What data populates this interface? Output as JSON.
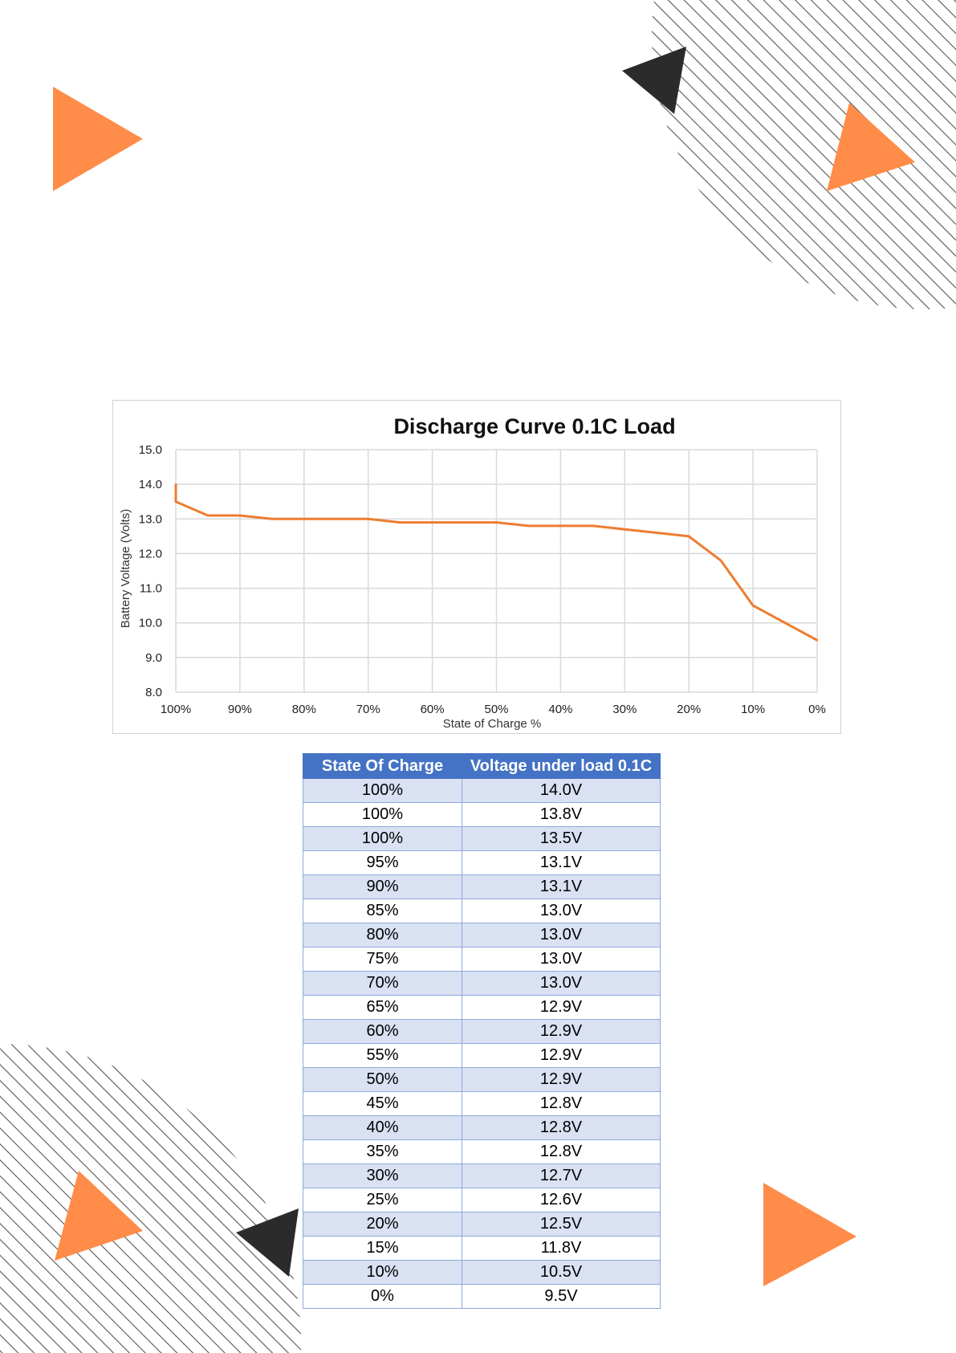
{
  "chart_data": {
    "type": "line",
    "title": "Discharge Curve 0.1C Load",
    "xlabel": "State of Charge %",
    "ylabel": "Battery Voltage (Volts)",
    "x_reversed": true,
    "xlim": [
      100,
      0
    ],
    "ylim": [
      8.0,
      15.0
    ],
    "x_ticks": [
      "100%",
      "90%",
      "80%",
      "70%",
      "60%",
      "50%",
      "40%",
      "30%",
      "20%",
      "10%",
      "0%"
    ],
    "y_ticks": [
      "8.0",
      "9.0",
      "10.0",
      "11.0",
      "12.0",
      "13.0",
      "14.0",
      "15.0"
    ],
    "grid": true,
    "series": [
      {
        "color": "#ed7d31",
        "x": [
          100,
          100,
          100,
          95,
          90,
          85,
          80,
          75,
          70,
          65,
          60,
          55,
          50,
          45,
          40,
          35,
          30,
          25,
          20,
          15,
          10,
          0
        ],
        "y": [
          14.0,
          13.8,
          13.5,
          13.1,
          13.1,
          13.0,
          13.0,
          13.0,
          13.0,
          12.9,
          12.9,
          12.9,
          12.9,
          12.8,
          12.8,
          12.8,
          12.7,
          12.6,
          12.5,
          11.8,
          10.5,
          9.5
        ]
      }
    ]
  },
  "table": {
    "headers": [
      "State Of Charge",
      "Voltage under load 0.1C"
    ],
    "rows": [
      [
        "100%",
        "14.0V"
      ],
      [
        "100%",
        "13.8V"
      ],
      [
        "100%",
        "13.5V"
      ],
      [
        "95%",
        "13.1V"
      ],
      [
        "90%",
        "13.1V"
      ],
      [
        "85%",
        "13.0V"
      ],
      [
        "80%",
        "13.0V"
      ],
      [
        "75%",
        "13.0V"
      ],
      [
        "70%",
        "13.0V"
      ],
      [
        "65%",
        "12.9V"
      ],
      [
        "60%",
        "12.9V"
      ],
      [
        "55%",
        "12.9V"
      ],
      [
        "50%",
        "12.9V"
      ],
      [
        "45%",
        "12.8V"
      ],
      [
        "40%",
        "12.8V"
      ],
      [
        "35%",
        "12.8V"
      ],
      [
        "30%",
        "12.7V"
      ],
      [
        "25%",
        "12.6V"
      ],
      [
        "20%",
        "12.5V"
      ],
      [
        "15%",
        "11.8V"
      ],
      [
        "10%",
        "10.5V"
      ],
      [
        "0%",
        "9.5V"
      ]
    ]
  },
  "colors": {
    "accent_orange": "#ff8c48",
    "dark_triangle": "#2b2b2b",
    "table_header": "#4472c4",
    "table_band": "#d9e1f2"
  }
}
